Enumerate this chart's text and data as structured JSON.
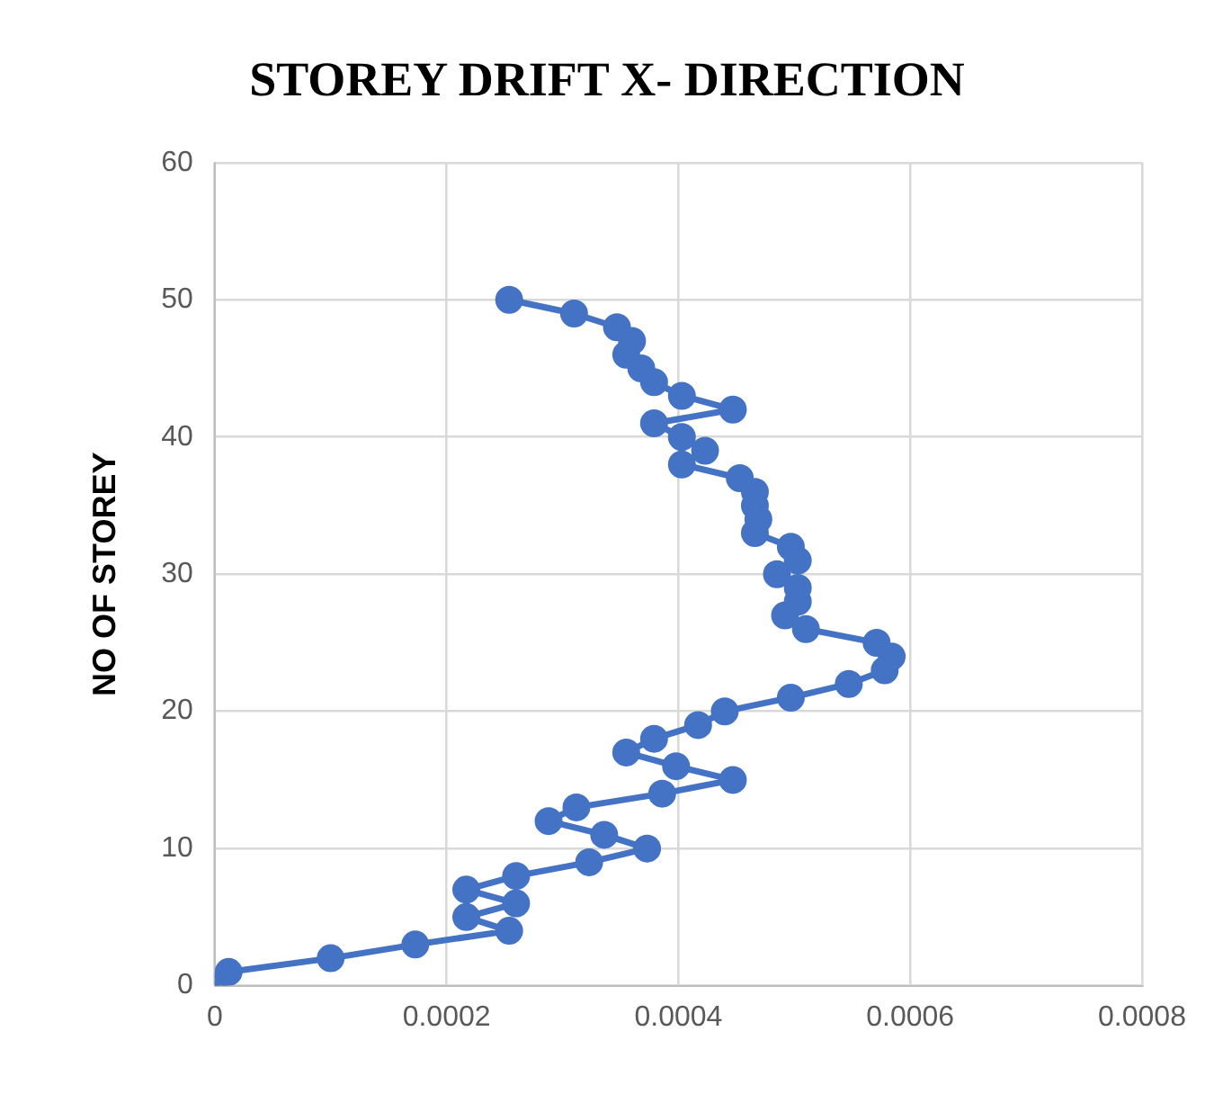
{
  "chart_data": {
    "type": "line",
    "title": "STOREY DRIFT X- DIRECTION",
    "ylabel": "NO OF STOREY",
    "x": [
      0,
      1.2e-05,
      0.0001,
      0.000173,
      0.000254,
      0.000217,
      0.00026,
      0.000217,
      0.00026,
      0.000323,
      0.000373,
      0.000336,
      0.000288,
      0.000312,
      0.000386,
      0.000447,
      0.000398,
      0.000355,
      0.000379,
      0.000417,
      0.00044,
      0.000497,
      0.000547,
      0.000578,
      0.000584,
      0.000571,
      0.00051,
      0.000492,
      0.000503,
      0.000503,
      0.000485,
      0.000503,
      0.000497,
      0.000466,
      0.000469,
      0.000466,
      0.000466,
      0.000453,
      0.000403,
      0.000423,
      0.000403,
      0.000379,
      0.000447,
      0.000403,
      0.000379,
      0.000368,
      0.000355,
      0.00036,
      0.000347,
      0.00031,
      0.000254
    ],
    "series": [
      {
        "color": "#4472c4",
        "values": [
          0,
          1,
          2,
          3,
          4,
          5,
          6,
          7,
          8,
          9,
          10,
          11,
          12,
          13,
          14,
          15,
          16,
          17,
          18,
          19,
          20,
          21,
          22,
          23,
          24,
          25,
          26,
          27,
          28,
          29,
          30,
          31,
          32,
          33,
          34,
          35,
          36,
          37,
          38,
          39,
          40,
          41,
          42,
          43,
          44,
          45,
          46,
          47,
          48,
          49,
          50
        ]
      }
    ],
    "xlim": [
      0,
      0.0008
    ],
    "xticks": [
      0,
      0.0002,
      0.0004,
      0.0006,
      0.0008
    ],
    "ylim": [
      0,
      60
    ],
    "yticks": [
      0,
      10,
      20,
      30,
      40,
      50,
      60
    ],
    "grid": true,
    "legend": false,
    "marker": "circle",
    "line_style": "solid"
  }
}
